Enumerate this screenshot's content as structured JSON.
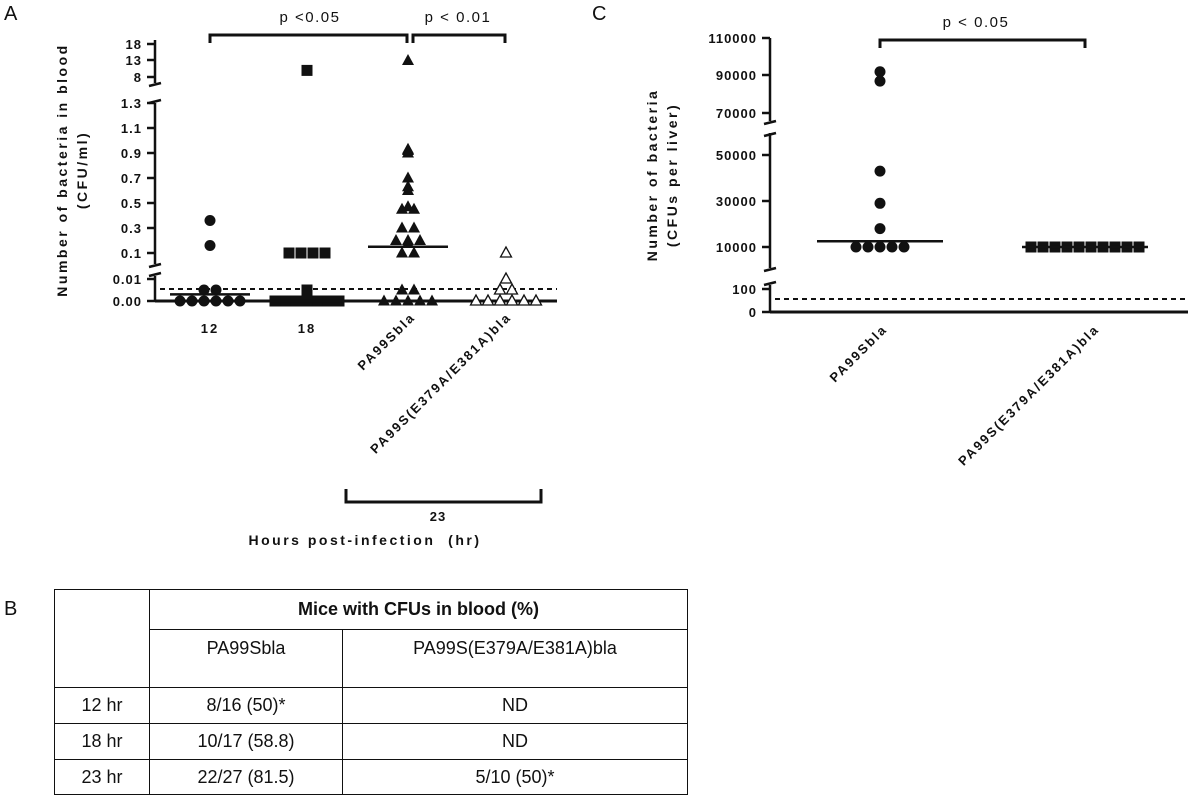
{
  "panel_labels": [
    "A",
    "B",
    "C"
  ],
  "chart_data": [
    {
      "panel": "A",
      "type": "scatter",
      "ylabel": "Number of bacteria in blood",
      "ylabel_units": "(CFU/ml)",
      "xlabel": "Hours post-infection  (hr)",
      "group_label": "23",
      "broken_y_axis": true,
      "y_segments": [
        {
          "range": [
            0,
            0.01
          ],
          "ticks": [
            "0.00",
            "0.01"
          ]
        },
        {
          "range": [
            0.1,
            1.3
          ],
          "ticks": [
            "0.1",
            "0.3",
            "0.5",
            "0.7",
            "0.9",
            "1.1",
            "1.3"
          ]
        },
        {
          "range": [
            8,
            18
          ],
          "ticks": [
            "8",
            "13",
            "18"
          ]
        }
      ],
      "detection_limit": 0.005,
      "categories": [
        "12",
        "18",
        "PA99Sbla",
        "PA99S(E379A/E381A)bla"
      ],
      "series": [
        {
          "category": "12",
          "marker": "circle-filled",
          "values": [
            0.36,
            0.16,
            0.005,
            0.005,
            0,
            0,
            0,
            0,
            0,
            0
          ],
          "median": 0.003
        },
        {
          "category": "18",
          "marker": "square-filled",
          "values": [
            10,
            0.1,
            0.09,
            0.09,
            0.1,
            0.005,
            0,
            0,
            0,
            0,
            0,
            0,
            0
          ],
          "median": 0
        },
        {
          "category": "PA99Sbla",
          "marker": "triangle-filled",
          "values": [
            13,
            0.93,
            0.9,
            0.92,
            0.7,
            0.6,
            0.63,
            0.45,
            0.47,
            0.45,
            0.3,
            0.3,
            0.2,
            0.2,
            0.18,
            0.2,
            0.1,
            0.1,
            0.005,
            0.005,
            0,
            0,
            0,
            0,
            0
          ],
          "median": 0.15
        },
        {
          "category": "PA99S(E379A/E381A)bla",
          "marker": "triangle-open",
          "values": [
            0.07,
            0.01,
            0.005,
            0.005,
            0,
            0,
            0,
            0,
            0,
            0
          ],
          "median": null
        }
      ],
      "comparisons": [
        {
          "from": "12",
          "to": "PA99Sbla",
          "label": "p <0.05"
        },
        {
          "from": "PA99Sbla",
          "to": "PA99S(E379A/E381A)bla",
          "label": "p < 0.01"
        }
      ]
    },
    {
      "panel": "C",
      "type": "scatter",
      "ylabel": "Number of bacteria",
      "ylabel_units": "(CFUs per liver)",
      "broken_y_axis": true,
      "y_segments": [
        {
          "range": [
            0,
            100
          ],
          "ticks": [
            "0",
            "100"
          ]
        },
        {
          "range": [
            10000,
            50000
          ],
          "ticks": [
            "10000",
            "30000",
            "50000"
          ]
        },
        {
          "range": [
            70000,
            110000
          ],
          "ticks": [
            "70000",
            "90000",
            "110000"
          ]
        }
      ],
      "detection_limit": 50,
      "categories": [
        "PA99Sbla",
        "PA99S(E379A/E381A)bla"
      ],
      "series": [
        {
          "category": "PA99Sbla",
          "marker": "circle-filled",
          "values": [
            87000,
            92000,
            43000,
            29000,
            18000,
            7000,
            6500,
            4000,
            4000,
            6500
          ],
          "median": 12500
        },
        {
          "category": "PA99S(E379A/E381A)bla",
          "marker": "square-filled",
          "values": [
            5800,
            5000,
            4000,
            3200,
            2800,
            2500,
            3000,
            3400,
            5500,
            7000
          ],
          "median": 3500
        }
      ],
      "comparisons": [
        {
          "from": "PA99Sbla",
          "to": "PA99S(E379A/E381A)bla",
          "label": "p < 0.05"
        }
      ]
    }
  ],
  "table_b": {
    "header": "Mice with CFUs in blood (%)",
    "columns": [
      "",
      "PA99Sbla",
      "PA99S(E379A/E381A)bla"
    ],
    "rows": [
      {
        "label": "12 hr",
        "cells": [
          "8/16 (50)*",
          "ND"
        ]
      },
      {
        "label": "18 hr",
        "cells": [
          "10/17 (58.8)",
          "ND"
        ]
      },
      {
        "label": "23 hr",
        "cells": [
          "22/27 (81.5)",
          "5/10 (50)*"
        ]
      }
    ]
  }
}
